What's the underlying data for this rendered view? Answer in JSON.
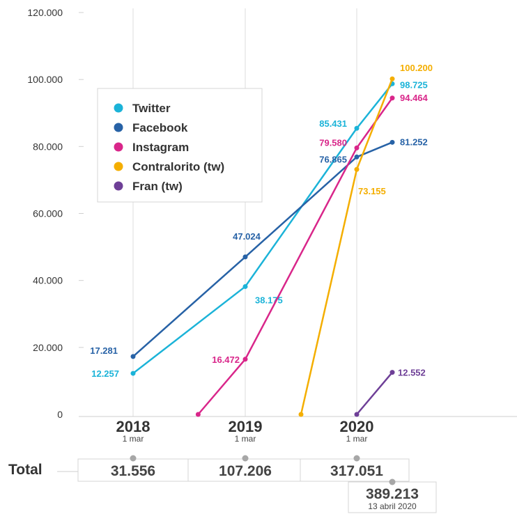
{
  "chart_data": {
    "type": "line",
    "ylim": [
      0,
      120000
    ],
    "y_ticks": [
      "0",
      "20.000",
      "40.000",
      "60.000",
      "80.000",
      "100.000",
      "120.000"
    ],
    "grid": "vertical lines at year marks",
    "legend_position": "top-left",
    "x_periods": [
      {
        "year": "2018",
        "date": "1 mar"
      },
      {
        "year": "2019",
        "date": "1 mar"
      },
      {
        "year": "2020",
        "date": "1 mar"
      }
    ],
    "series": [
      {
        "name": "Twitter",
        "color": "#1BB3D8",
        "points": [
          {
            "x": 0,
            "y": 12257,
            "label": "12.257"
          },
          {
            "x": 1,
            "y": 38175,
            "label": "38.175"
          },
          {
            "x": 2,
            "y": 85431,
            "label": "85.431"
          },
          {
            "x": 2.33,
            "y": 98725,
            "label": "98.725"
          }
        ]
      },
      {
        "name": "Facebook",
        "color": "#2762A6",
        "points": [
          {
            "x": 0,
            "y": 17281,
            "label": "17.281"
          },
          {
            "x": 1,
            "y": 47024,
            "label": "47.024"
          },
          {
            "x": 2,
            "y": 76865,
            "label": "76.865"
          },
          {
            "x": 2.33,
            "y": 81252,
            "label": "81.252"
          }
        ]
      },
      {
        "name": "Instagram",
        "color": "#D9268A",
        "points": [
          {
            "x": 0.58,
            "y": 0,
            "label": ""
          },
          {
            "x": 1,
            "y": 16472,
            "label": "16.472"
          },
          {
            "x": 2,
            "y": 79580,
            "label": "79.580"
          },
          {
            "x": 2.33,
            "y": 94464,
            "label": "94.464"
          }
        ]
      },
      {
        "name": "Contralorito (tw)",
        "color": "#F4AE00",
        "points": [
          {
            "x": 1.5,
            "y": 0,
            "label": ""
          },
          {
            "x": 2,
            "y": 73155,
            "label": "73.155"
          },
          {
            "x": 2.33,
            "y": 100200,
            "label": "100.200"
          }
        ]
      },
      {
        "name": "Fran (tw)",
        "color": "#6E3F97",
        "points": [
          {
            "x": 2,
            "y": 0,
            "label": ""
          },
          {
            "x": 2.33,
            "y": 12552,
            "label": "12.552"
          }
        ]
      }
    ]
  },
  "totals": {
    "label": "Total",
    "values": [
      "31.556",
      "107.206",
      "317.051"
    ],
    "final_value": "389.213",
    "final_date": "13 abril 2020"
  }
}
